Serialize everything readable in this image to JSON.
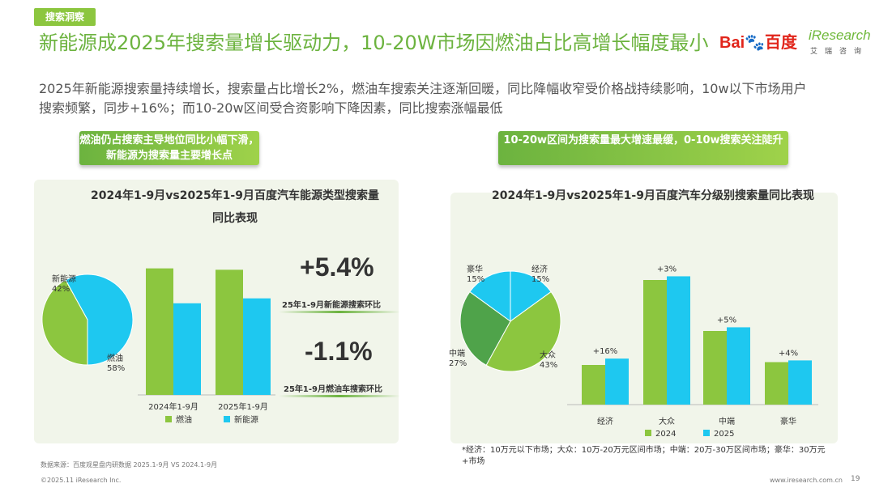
{
  "header": {
    "tag": "搜索洞察",
    "title": "新能源成2025年搜索量增长驱动力，10-20W市场因燃油占比高增长幅度最小",
    "subtitle": "2025年新能源搜索量持续增长，搜索量占比增长2%，燃油车搜索关注逐渐回暖，同比降幅收窄受价格战持续影响，10w以下市场用户搜索频繁，同步+16%；而10-20w区间受合资影响下降因素，同比搜索涨幅最低"
  },
  "logos": {
    "baidu_text": "Bai",
    "baidu_cn": "百度",
    "iresearch_text": "iResearch",
    "iresearch_cn": "艾瑞咨询"
  },
  "left": {
    "banner": "燃油仍占搜索主导地位同比小幅下滑，新能源为搜索量主要增长点",
    "chart_title": "2024年1-9月vs2025年1-9月百度汽车能源类型搜索量同比表现",
    "stat1_value": "+5.4%",
    "stat1_label": "25年1-9月新能源搜索环比",
    "stat2_value": "-1.1%",
    "stat2_label": "25年1-9月燃油车搜索环比"
  },
  "right": {
    "banner": "10-20w区间为搜索量最大增速最缓，0-10w搜索关注陡升",
    "chart_title": "2024年1-9月vs2025年1-9月百度汽车分级别搜索量同比表现",
    "note": "*经济：10万元以下市场；大众：10万-20万元区间市场；中端：20万-30万区间市场；豪华：30万元+市场"
  },
  "footer": {
    "source": "数据来源：百度观星盘内研数据 2025.1-9月 VS 2024.1-9月",
    "copyright": "©2025.11 iResearch Inc.",
    "website": "www.iresearch.com.cn",
    "page": "19"
  },
  "colors": {
    "green": "#8cc63f",
    "blue": "#1ec8f0",
    "dark_green": "#4fa34a",
    "title_green": "#6cb33f"
  },
  "chart_data": [
    {
      "type": "pie",
      "labels": [
        "新能源",
        "燃油"
      ],
      "values": [
        42,
        58
      ],
      "colors": [
        "#8cc63f",
        "#1ec8f0"
      ]
    },
    {
      "type": "bar",
      "categories": [
        "2024年1-9月",
        "2025年1-9月"
      ],
      "series": [
        {
          "name": "燃油",
          "values": [
            100,
            98.9
          ]
        },
        {
          "name": "新能源",
          "values": [
            72.4,
            76.3
          ]
        }
      ],
      "ylim": [
        0,
        110
      ]
    },
    {
      "type": "pie",
      "labels": [
        "经济",
        "大众",
        "中端",
        "豪华"
      ],
      "values": [
        15,
        43,
        27,
        15
      ],
      "colors": [
        "#1ec8f0",
        "#8cc63f",
        "#4fa34a",
        "#1ec8f0"
      ]
    },
    {
      "type": "bar",
      "categories": [
        "经济",
        "大众",
        "中端",
        "豪华"
      ],
      "series": [
        {
          "name": "2024",
          "values": [
            28,
            88,
            52,
            30
          ]
        },
        {
          "name": "2025",
          "values": [
            32.5,
            90.6,
            54.6,
            31.2
          ]
        }
      ],
      "data_labels": [
        "+16%",
        "+3%",
        "+5%",
        "+4%"
      ],
      "ylim": [
        0,
        100
      ]
    }
  ]
}
